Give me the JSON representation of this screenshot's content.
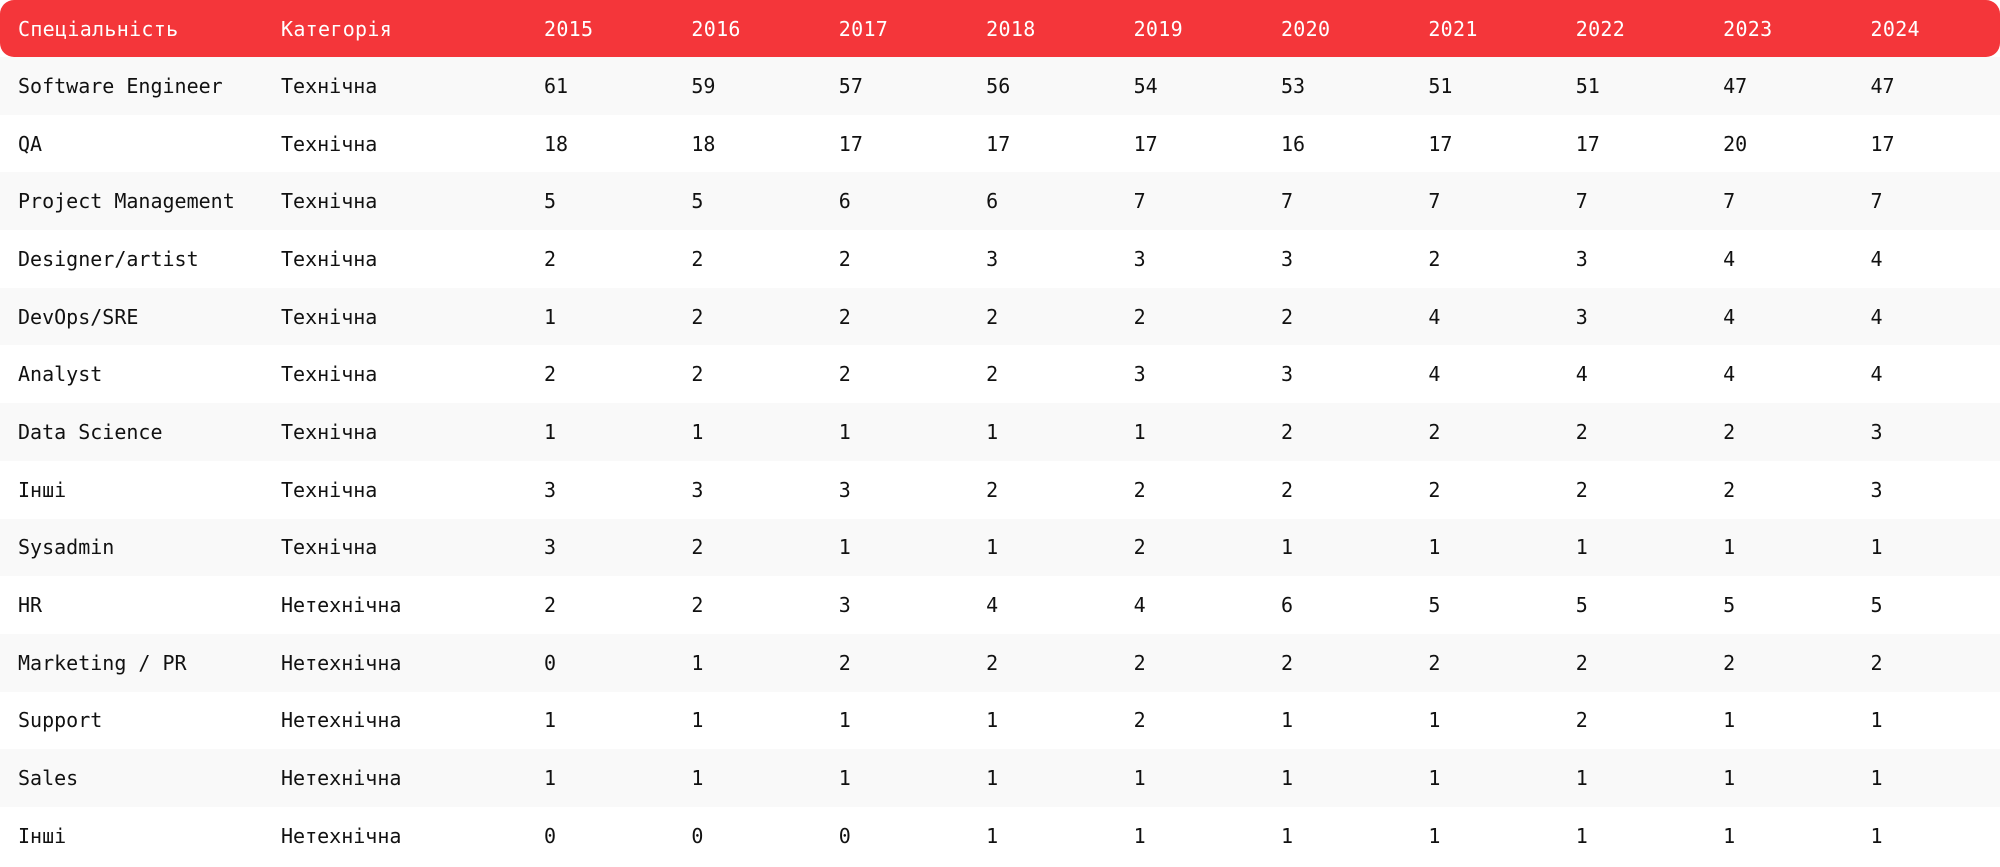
{
  "colors": {
    "header_bg": "#f4363a",
    "header_text": "#ffffff",
    "row_alt": "#f9f9f9",
    "row_plain": "#ffffff"
  },
  "table": {
    "headers": [
      "Спеціальність",
      "Категорія",
      "2015",
      "2016",
      "2017",
      "2018",
      "2019",
      "2020",
      "2021",
      "2022",
      "2023",
      "2024"
    ],
    "rows": [
      [
        "Software Engineer",
        "Технічна",
        "61",
        "59",
        "57",
        "56",
        "54",
        "53",
        "51",
        "51",
        "47",
        "47"
      ],
      [
        "QA",
        "Технічна",
        "18",
        "18",
        "17",
        "17",
        "17",
        "16",
        "17",
        "17",
        "20",
        "17"
      ],
      [
        "Project Management",
        "Технічна",
        "5",
        "5",
        "6",
        "6",
        "7",
        "7",
        "7",
        "7",
        "7",
        "7"
      ],
      [
        "Designer/artist",
        "Технічна",
        "2",
        "2",
        "2",
        "3",
        "3",
        "3",
        "2",
        "3",
        "4",
        "4"
      ],
      [
        "DevOps/SRE",
        "Технічна",
        "1",
        "2",
        "2",
        "2",
        "2",
        "2",
        "4",
        "3",
        "4",
        "4"
      ],
      [
        "Analyst",
        "Технічна",
        "2",
        "2",
        "2",
        "2",
        "3",
        "3",
        "4",
        "4",
        "4",
        "4"
      ],
      [
        "Data Science",
        "Технічна",
        "1",
        "1",
        "1",
        "1",
        "1",
        "2",
        "2",
        "2",
        "2",
        "3"
      ],
      [
        "Інші",
        "Технічна",
        "3",
        "3",
        "3",
        "2",
        "2",
        "2",
        "2",
        "2",
        "2",
        "3"
      ],
      [
        "Sysadmin",
        "Технічна",
        "3",
        "2",
        "1",
        "1",
        "2",
        "1",
        "1",
        "1",
        "1",
        "1"
      ],
      [
        "HR",
        "Нетехнічна",
        "2",
        "2",
        "3",
        "4",
        "4",
        "6",
        "5",
        "5",
        "5",
        "5"
      ],
      [
        "Marketing / PR",
        "Нетехнічна",
        "0",
        "1",
        "2",
        "2",
        "2",
        "2",
        "2",
        "2",
        "2",
        "2"
      ],
      [
        "Support",
        "Нетехнічна",
        "1",
        "1",
        "1",
        "1",
        "2",
        "1",
        "1",
        "2",
        "1",
        "1"
      ],
      [
        "Sales",
        "Нетехнічна",
        "1",
        "1",
        "1",
        "1",
        "1",
        "1",
        "1",
        "1",
        "1",
        "1"
      ],
      [
        "Інші",
        "Нетехнічна",
        "0",
        "0",
        "0",
        "1",
        "1",
        "1",
        "1",
        "1",
        "1",
        "1"
      ]
    ]
  }
}
